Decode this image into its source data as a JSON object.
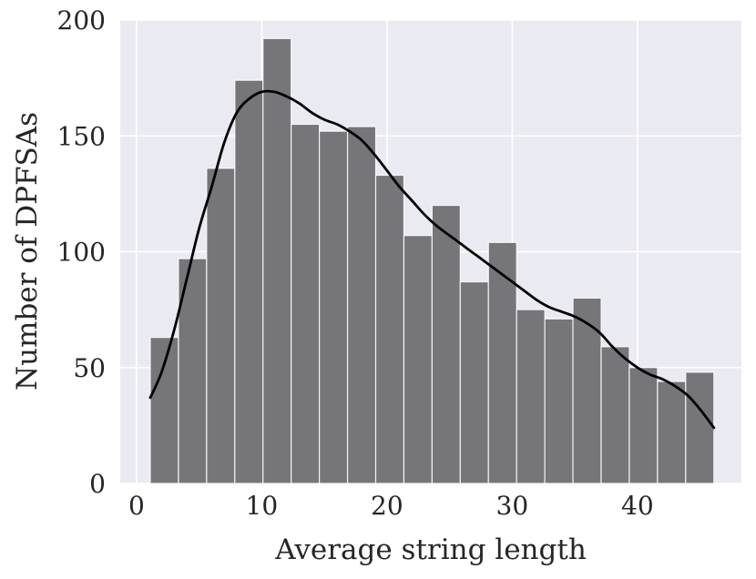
{
  "chart_data": {
    "type": "bar",
    "subtype": "histogram",
    "xlabel": "Average string length",
    "ylabel": "Number of DPFSAs",
    "xlim": [
      -1.3,
      48.3
    ],
    "ylim": [
      0,
      200
    ],
    "x_ticks": [
      0,
      10,
      20,
      30,
      40
    ],
    "y_ticks": [
      0,
      50,
      100,
      150,
      200
    ],
    "grid": true,
    "colors": {
      "background": "#EAEAF2",
      "grid": "#FFFFFF",
      "bar": "#76757A",
      "kde": "#000000"
    },
    "bins": [
      {
        "x0": 1.1,
        "x1": 3.35,
        "count": 63
      },
      {
        "x0": 3.35,
        "x1": 5.6,
        "count": 97
      },
      {
        "x0": 5.6,
        "x1": 7.85,
        "count": 136
      },
      {
        "x0": 7.85,
        "x1": 10.1,
        "count": 174
      },
      {
        "x0": 10.1,
        "x1": 12.35,
        "count": 192
      },
      {
        "x0": 12.35,
        "x1": 14.6,
        "count": 155
      },
      {
        "x0": 14.6,
        "x1": 16.85,
        "count": 152
      },
      {
        "x0": 16.85,
        "x1": 19.1,
        "count": 154
      },
      {
        "x0": 19.1,
        "x1": 21.35,
        "count": 133
      },
      {
        "x0": 21.35,
        "x1": 23.6,
        "count": 107
      },
      {
        "x0": 23.6,
        "x1": 25.85,
        "count": 120
      },
      {
        "x0": 25.85,
        "x1": 28.1,
        "count": 87
      },
      {
        "x0": 28.1,
        "x1": 30.35,
        "count": 104
      },
      {
        "x0": 30.35,
        "x1": 32.6,
        "count": 75
      },
      {
        "x0": 32.6,
        "x1": 34.85,
        "count": 71
      },
      {
        "x0": 34.85,
        "x1": 37.1,
        "count": 80
      },
      {
        "x0": 37.1,
        "x1": 39.35,
        "count": 59
      },
      {
        "x0": 39.35,
        "x1": 41.6,
        "count": 50
      },
      {
        "x0": 41.6,
        "x1": 43.85,
        "count": 44
      },
      {
        "x0": 43.85,
        "x1": 46.1,
        "count": 48
      }
    ],
    "kde": {
      "x": [
        1.1,
        2.0,
        3.0,
        4.0,
        5.0,
        6.0,
        7.0,
        8.0,
        9.0,
        10.0,
        11.0,
        12.0,
        13.0,
        14.0,
        15.0,
        16.0,
        17.0,
        18.0,
        19.0,
        20.0,
        21.0,
        22.0,
        23.0,
        24.0,
        25.0,
        26.0,
        27.0,
        28.0,
        29.0,
        30.0,
        31.0,
        32.0,
        33.0,
        34.0,
        35.0,
        36.0,
        37.0,
        38.0,
        39.0,
        40.0,
        41.0,
        42.0,
        43.0,
        44.0,
        45.0,
        46.1
      ],
      "y": [
        37,
        48,
        66,
        88,
        110,
        128,
        147,
        160,
        166,
        169,
        169,
        167,
        164,
        160,
        157,
        155,
        152,
        148,
        142,
        135,
        128,
        122,
        116,
        111,
        107,
        103,
        99,
        95,
        91,
        87,
        83,
        79,
        76,
        74,
        72,
        69,
        65,
        59,
        54,
        50,
        47,
        45,
        42,
        38,
        32,
        24
      ]
    }
  }
}
